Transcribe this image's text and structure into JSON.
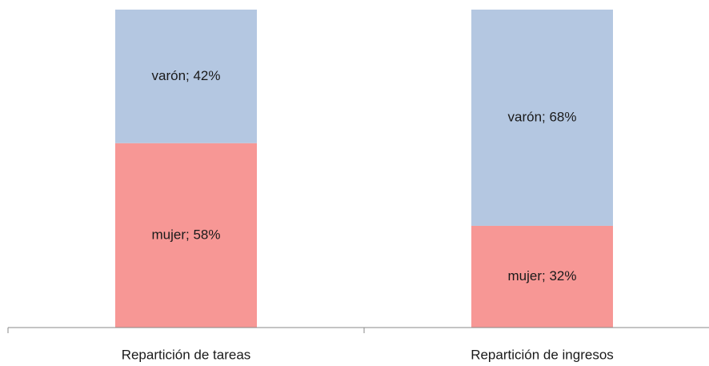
{
  "chart_data": {
    "type": "stacked_bar",
    "categories": [
      "Repartición de tareas",
      "Repartición de ingresos"
    ],
    "series": [
      {
        "name": "mujer",
        "color": "#f79795",
        "values": [
          58,
          32
        ],
        "value_labels": [
          "mujer; 58%",
          "mujer; 32%"
        ]
      },
      {
        "name": "varón",
        "color": "#b4c7e1",
        "values": [
          42,
          68
        ],
        "value_labels": [
          "varón; 42%",
          "varón; 68%"
        ]
      }
    ],
    "ylim": [
      0,
      100
    ]
  }
}
